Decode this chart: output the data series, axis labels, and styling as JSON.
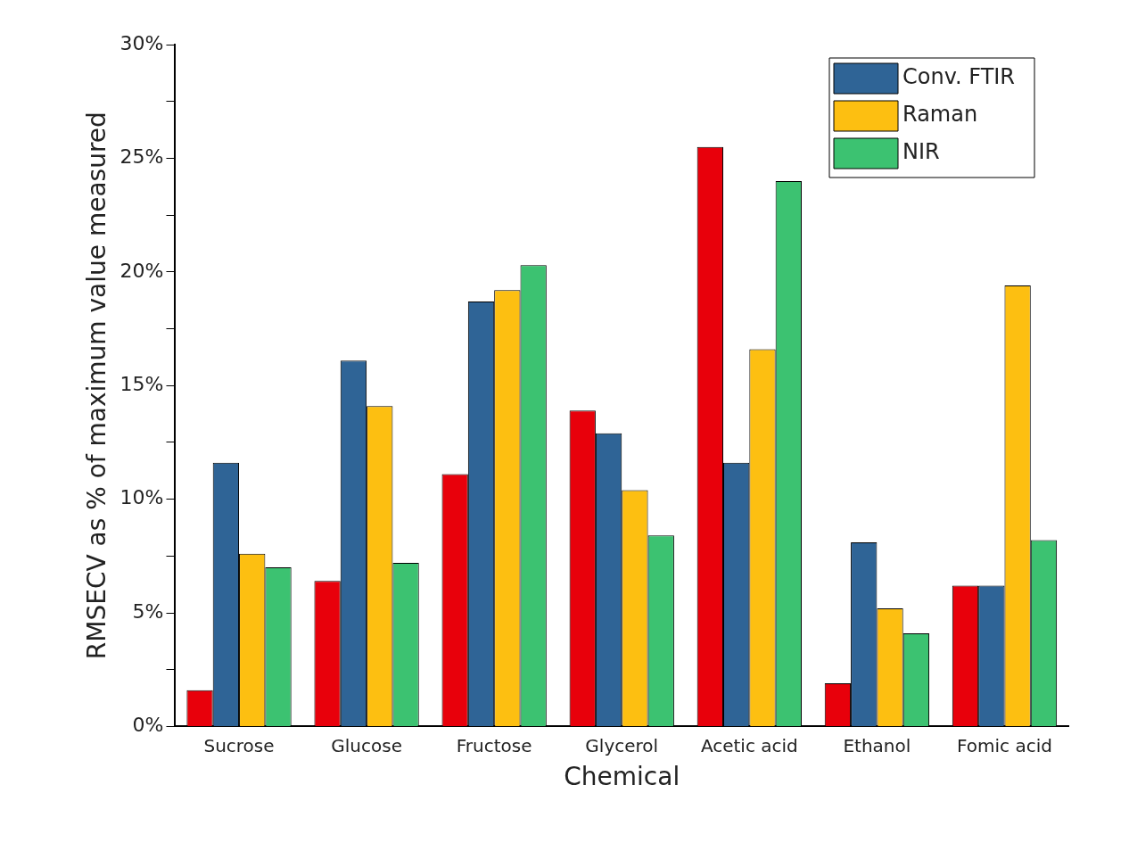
{
  "chart_data": {
    "type": "bar",
    "xlabel": "Chemical",
    "ylabel": "RMSECV as % of maximum value measured",
    "categories": [
      "Sucrose",
      "Glucose",
      "Fructose",
      "Glycerol",
      "Acetic acid",
      "Ethanol",
      "Fomic acid"
    ],
    "series": [
      {
        "color": "#e8000b",
        "values": [
          1.6,
          6.4,
          11.1,
          13.9,
          25.5,
          1.9,
          6.2
        ]
      },
      {
        "name": "Conv. FTIR",
        "color": "#2f6496",
        "values": [
          11.6,
          16.1,
          18.7,
          12.9,
          11.6,
          8.1,
          6.2
        ]
      },
      {
        "name": "Raman",
        "color": "#fdbf11",
        "values": [
          7.6,
          14.1,
          19.2,
          10.4,
          16.6,
          5.2,
          19.4
        ]
      },
      {
        "name": "NIR",
        "color": "#3cc271",
        "values": [
          7.0,
          7.2,
          20.3,
          8.4,
          24.0,
          4.1,
          8.2
        ]
      }
    ],
    "ylim": [
      0,
      30
    ],
    "yticks": [
      {
        "value": 0,
        "label": "0%"
      },
      {
        "value": 2.5,
        "label": null
      },
      {
        "value": 5,
        "label": "5%"
      },
      {
        "value": 7.5,
        "label": null
      },
      {
        "value": 10,
        "label": "10%"
      },
      {
        "value": 12.5,
        "label": null
      },
      {
        "value": 15,
        "label": "15%"
      },
      {
        "value": 17.5,
        "label": null
      },
      {
        "value": 20,
        "label": "20%"
      },
      {
        "value": 22.5,
        "label": null
      },
      {
        "value": 25,
        "label": "25%"
      },
      {
        "value": 27.5,
        "label": null
      },
      {
        "value": 30,
        "label": "30%"
      }
    ],
    "grid": false,
    "legend": "top right"
  }
}
